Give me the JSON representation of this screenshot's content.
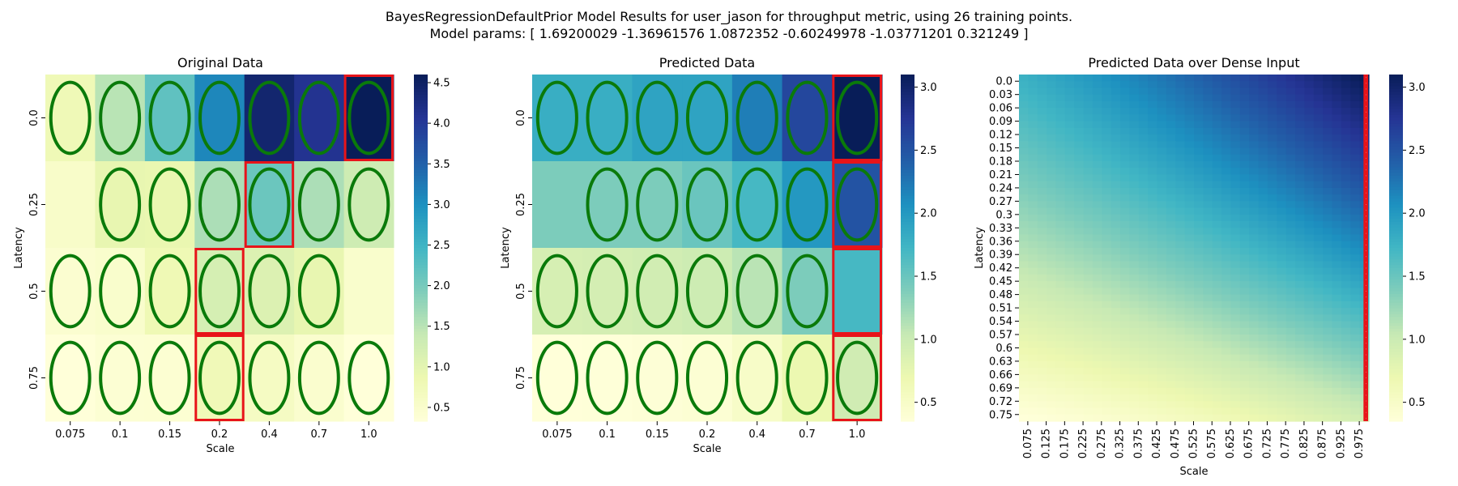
{
  "figure": {
    "suptitle_line1": "BayesRegressionDefaultPrior Model Results for user_jason for throughput metric, using 26 training points.",
    "suptitle_line2": "Model params: [ 1.69200029 -1.36961576  1.0872352  -0.60249978 -1.03771201  0.321249  ]"
  },
  "colormap": "YlGnBu",
  "chart_data": [
    {
      "type": "heatmap",
      "title": "Original Data",
      "xlabel": "Scale",
      "ylabel": "Latency",
      "x_categories": [
        "0.075",
        "0.1",
        "0.15",
        "0.2",
        "0.4",
        "0.7",
        "1.0"
      ],
      "y_categories": [
        "0.0",
        "0.25",
        "0.5",
        "0.75"
      ],
      "values": [
        [
          0.79,
          1.5,
          2.2,
          3.1,
          4.4,
          4.1,
          4.6
        ],
        [
          0.55,
          0.94,
          0.9,
          1.6,
          2.1,
          1.6,
          1.3
        ],
        [
          0.45,
          0.5,
          0.81,
          1.2,
          1.1,
          0.94,
          0.5
        ],
        [
          0.33,
          0.41,
          0.43,
          0.77,
          0.62,
          0.48,
          0.33
        ]
      ],
      "value_labels": [
        [
          "0.79",
          "1.5",
          "2.2",
          "3.1",
          "4.4",
          "4.1",
          "4.6"
        ],
        [
          "0.55",
          "0.94",
          "0.9",
          "1.6",
          "2.1",
          "1.6",
          "1.3"
        ],
        [
          "0.45",
          "0.5",
          "0.81",
          "1.2",
          "1.1",
          "0.94",
          "0.5"
        ],
        [
          "0.33",
          "0.41",
          "0.43",
          "0.77",
          "0.62",
          "0.48",
          "0.33"
        ]
      ],
      "vmin": 0.33,
      "vmax": 4.6,
      "colorbar_ticks": [
        "0.5",
        "1.0",
        "1.5",
        "2.0",
        "2.5",
        "3.0",
        "3.5",
        "4.0",
        "4.5"
      ],
      "green_ellipses": [
        [
          0,
          0
        ],
        [
          0,
          1
        ],
        [
          0,
          2
        ],
        [
          0,
          3
        ],
        [
          0,
          4
        ],
        [
          0,
          5
        ],
        [
          0,
          6
        ],
        [
          1,
          1
        ],
        [
          1,
          2
        ],
        [
          1,
          3
        ],
        [
          1,
          4
        ],
        [
          1,
          5
        ],
        [
          1,
          6
        ],
        [
          2,
          0
        ],
        [
          2,
          1
        ],
        [
          2,
          2
        ],
        [
          2,
          3
        ],
        [
          2,
          4
        ],
        [
          2,
          5
        ],
        [
          3,
          0
        ],
        [
          3,
          1
        ],
        [
          3,
          2
        ],
        [
          3,
          3
        ],
        [
          3,
          4
        ],
        [
          3,
          5
        ],
        [
          3,
          6
        ]
      ],
      "red_boxes": [
        [
          0,
          6
        ],
        [
          1,
          4
        ],
        [
          2,
          3
        ],
        [
          3,
          3
        ]
      ]
    },
    {
      "type": "heatmap",
      "title": "Predicted Data",
      "xlabel": "Scale",
      "ylabel": "Latency",
      "x_categories": [
        "0.075",
        "0.1",
        "0.15",
        "0.2",
        "0.4",
        "0.7",
        "1.0"
      ],
      "y_categories": [
        "0.0",
        "0.25",
        "0.5",
        "0.75"
      ],
      "values": [
        [
          1.8,
          1.8,
          1.9,
          1.9,
          2.2,
          2.6,
          3.1
        ],
        [
          1.4,
          1.4,
          1.4,
          1.5,
          1.7,
          2.0,
          2.5
        ],
        [
          0.9,
          0.92,
          0.95,
          0.98,
          1.1,
          1.4,
          1.7
        ],
        [
          0.35,
          0.36,
          0.38,
          0.4,
          0.5,
          0.7,
          0.96
        ]
      ],
      "value_labels": [
        [
          "1.8",
          "1.8",
          "1.9",
          "1.9",
          "2.2",
          "2.6",
          "3.1"
        ],
        [
          "1.4",
          "1.4",
          "1.4",
          "1.5",
          "1.7",
          "2",
          "2.5"
        ],
        [
          "0.9",
          "0.92",
          "0.95",
          "0.98",
          "1.1",
          "1.4",
          "1.7"
        ],
        [
          "0.35",
          "0.36",
          "0.38",
          "0.4",
          "0.5",
          "0.7",
          "0.96"
        ]
      ],
      "vmin": 0.35,
      "vmax": 3.1,
      "colorbar_ticks": [
        "0.5",
        "1.0",
        "1.5",
        "2.0",
        "2.5",
        "3.0"
      ],
      "green_ellipses": [
        [
          0,
          0
        ],
        [
          0,
          1
        ],
        [
          0,
          2
        ],
        [
          0,
          3
        ],
        [
          0,
          4
        ],
        [
          0,
          5
        ],
        [
          0,
          6
        ],
        [
          1,
          1
        ],
        [
          1,
          2
        ],
        [
          1,
          3
        ],
        [
          1,
          4
        ],
        [
          1,
          5
        ],
        [
          1,
          6
        ],
        [
          2,
          0
        ],
        [
          2,
          1
        ],
        [
          2,
          2
        ],
        [
          2,
          3
        ],
        [
          2,
          4
        ],
        [
          2,
          5
        ],
        [
          3,
          0
        ],
        [
          3,
          1
        ],
        [
          3,
          2
        ],
        [
          3,
          3
        ],
        [
          3,
          4
        ],
        [
          3,
          5
        ],
        [
          3,
          6
        ]
      ],
      "red_boxes": [
        [
          0,
          6
        ],
        [
          1,
          6
        ],
        [
          2,
          6
        ],
        [
          3,
          6
        ]
      ]
    },
    {
      "type": "heatmap",
      "title": "Predicted Data over Dense Input",
      "xlabel": "Scale",
      "ylabel": "Latency",
      "x_categories": [
        "0.075",
        "0.125",
        "0.175",
        "0.225",
        "0.275",
        "0.325",
        "0.375",
        "0.425",
        "0.475",
        "0.525",
        "0.575",
        "0.625",
        "0.675",
        "0.725",
        "0.775",
        "0.825",
        "0.875",
        "0.925",
        "0.975"
      ],
      "y_categories": [
        "0.0",
        "0.03",
        "0.06",
        "0.09",
        "0.12",
        "0.15",
        "0.18",
        "0.21",
        "0.24",
        "0.27",
        "0.3",
        "0.33",
        "0.36",
        "0.39",
        "0.42",
        "0.45",
        "0.48",
        "0.51",
        "0.54",
        "0.57",
        "0.6",
        "0.63",
        "0.66",
        "0.69",
        "0.72",
        "0.75"
      ],
      "x_range": [
        0.075,
        1.0
      ],
      "y_range": [
        0.0,
        0.75
      ],
      "model_params": [
        1.69200029,
        -1.36961576,
        1.0872352,
        -0.60249978,
        -1.03771201,
        0.321249
      ],
      "vmin": 0.35,
      "vmax": 3.1,
      "colorbar_ticks": [
        "0.5",
        "1.0",
        "1.5",
        "2.0",
        "2.5",
        "3.0"
      ],
      "red_column_at_x": 1.0
    }
  ]
}
